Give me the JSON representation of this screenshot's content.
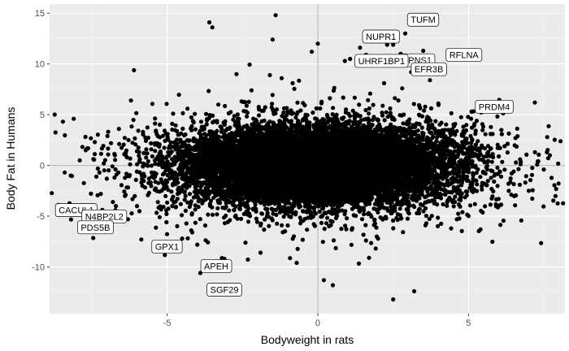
{
  "chart_data": {
    "type": "scatter",
    "xlabel": "Bodyweight in rats",
    "ylabel": "Body Fat in Humans",
    "xlim": [
      -8.9,
      8.2
    ],
    "ylim": [
      -14.6,
      15.9
    ],
    "xticks": [
      -5,
      0,
      5
    ],
    "yticks": [
      -10,
      -5,
      0,
      5,
      10,
      15
    ],
    "grid": true,
    "reference_lines": {
      "x": 0,
      "y": 0
    },
    "colors": {
      "panel": "#ebebeb",
      "grid_major": "#ffffff",
      "point": "#000000",
      "reference": "#bdbdbd"
    },
    "cluster": {
      "center": [
        0,
        0
      ],
      "spread_x": 2.1,
      "spread_y": 1.8,
      "count": 14000
    },
    "labeled_points": [
      {
        "label": "TUFM",
        "x": 2.9,
        "y": 13.0
      },
      {
        "label": "NUPR1",
        "x": 2.5,
        "y": 11.9
      },
      {
        "label": "RFLNA",
        "x": 3.5,
        "y": 11.3
      },
      {
        "label": "SPNS1",
        "x": 2.75,
        "y": 11.0
      },
      {
        "label": "EFR3B",
        "x": 3.2,
        "y": 10.6
      },
      {
        "label": "UHRF1BP1",
        "x": 0.9,
        "y": 10.3
      },
      {
        "label": "PRDM4",
        "x": 5.1,
        "y": 5.3
      },
      {
        "label": "CACUL1",
        "x": -6.8,
        "y": -3.6
      },
      {
        "label": "N4BP2L2",
        "x": -6.6,
        "y": -4.7
      },
      {
        "label": "PDS5B",
        "x": -6.3,
        "y": -5.3
      },
      {
        "label": "GPX1",
        "x": -4.6,
        "y": -8.4
      },
      {
        "label": "APEH",
        "x": -3.1,
        "y": -9.2
      },
      {
        "label": "SGF29",
        "x": -3.1,
        "y": -12.0
      }
    ],
    "outlier_points": [
      [
        -1.4,
        14.8
      ],
      [
        -3.6,
        14.1
      ],
      [
        -3.5,
        13.6
      ],
      [
        -1.5,
        12.4
      ],
      [
        0.0,
        12.0
      ],
      [
        2.3,
        11.9
      ],
      [
        1.4,
        11.6
      ],
      [
        -0.2,
        11.2
      ],
      [
        1.6,
        10.9
      ],
      [
        -2.7,
        9.0
      ],
      [
        -8.1,
        4.6
      ],
      [
        -7.4,
        2.3
      ],
      [
        -6.6,
        3.6
      ],
      [
        -6.2,
        6.4
      ],
      [
        -7.7,
        1.5
      ],
      [
        -7.9,
        0.5
      ],
      [
        -7.1,
        0.2
      ],
      [
        -7.0,
        -1.3
      ],
      [
        -7.2,
        -2.8
      ],
      [
        -8.2,
        -1.0
      ],
      [
        -5.8,
        3.3
      ],
      [
        -6.4,
        -3.0
      ],
      [
        -6.0,
        -4.0
      ],
      [
        6.5,
        -0.6
      ],
      [
        6.7,
        -1.9
      ],
      [
        7.0,
        -2.5
      ],
      [
        7.3,
        0.4
      ],
      [
        7.6,
        1.3
      ],
      [
        7.5,
        -0.4
      ],
      [
        7.7,
        1.0
      ],
      [
        6.2,
        1.9
      ],
      [
        5.8,
        3.1
      ],
      [
        5.2,
        4.1
      ],
      [
        5.4,
        -6.3
      ],
      [
        3.2,
        -12.4
      ],
      [
        2.5,
        -13.2
      ],
      [
        0.5,
        -11.8
      ],
      [
        0.2,
        -11.3
      ],
      [
        -3.9,
        -10.6
      ],
      [
        -4.5,
        -7.2
      ],
      [
        -4.2,
        -6.4
      ],
      [
        -5.2,
        -4.2
      ],
      [
        4.8,
        -4.6
      ],
      [
        4.3,
        -3.6
      ],
      [
        4.0,
        6.1
      ],
      [
        2.2,
        8.1
      ],
      [
        2.8,
        7.6
      ],
      [
        -2.2,
        7.4
      ],
      [
        -1.9,
        -8.6
      ],
      [
        1.7,
        -9.1
      ],
      [
        -0.7,
        -9.6
      ],
      [
        3.6,
        -5.7
      ],
      [
        -4.8,
        5.1
      ],
      [
        -5.6,
        -2.7
      ],
      [
        6.0,
        -3.3
      ],
      [
        4.9,
        2.6
      ],
      [
        -3.3,
        6.0
      ],
      [
        3.1,
        9.2
      ],
      [
        -1.2,
        8.6
      ],
      [
        5.6,
        0.9
      ],
      [
        -6.0,
        1.4
      ],
      [
        -5.4,
        -1.1
      ],
      [
        -4.0,
        -7.8
      ],
      [
        2.0,
        -7.2
      ],
      [
        -2.4,
        -7.6
      ]
    ]
  }
}
